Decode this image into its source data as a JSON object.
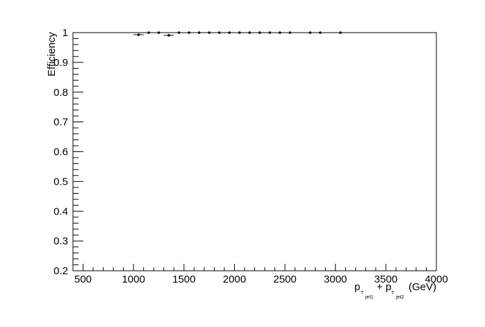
{
  "chart_data": {
    "type": "scatter",
    "xlabel": {
      "p1": "p",
      "t1": "T",
      "j1": "jet1",
      "plus": "+ p",
      "t2": "T",
      "j2": "jet2",
      "unit": "(GeV)"
    },
    "ylabel": "Efficiency",
    "xlim": [
      400,
      4000
    ],
    "ylim": [
      0.2,
      1.0
    ],
    "x_ticks": [
      500,
      1000,
      1500,
      2000,
      2500,
      3000,
      3500,
      4000
    ],
    "y_ticks": [
      0.2,
      0.3,
      0.4,
      0.5,
      0.6,
      0.7,
      0.8,
      0.9,
      1.0
    ],
    "x_tick_labels": [
      "500",
      "1000",
      "1500",
      "2000",
      "2500",
      "3000",
      "3500",
      "4000"
    ],
    "y_tick_labels": [
      "0.2",
      "0.3",
      "0.4",
      "0.5",
      "0.6",
      "0.7",
      "0.8",
      "0.9",
      "1"
    ],
    "grid": false,
    "points": [
      {
        "x": 1050,
        "y": 0.993,
        "xerr": 50
      },
      {
        "x": 1150,
        "y": 1.0,
        "xerr": 50
      },
      {
        "x": 1250,
        "y": 1.0,
        "xerr": 50
      },
      {
        "x": 1350,
        "y": 0.991,
        "xerr": 50
      },
      {
        "x": 1450,
        "y": 1.0,
        "xerr": 50
      },
      {
        "x": 1550,
        "y": 1.0,
        "xerr": 50
      },
      {
        "x": 1650,
        "y": 1.0,
        "xerr": 50
      },
      {
        "x": 1750,
        "y": 1.0,
        "xerr": 50
      },
      {
        "x": 1850,
        "y": 1.0,
        "xerr": 50
      },
      {
        "x": 1950,
        "y": 1.0,
        "xerr": 50
      },
      {
        "x": 2050,
        "y": 1.0,
        "xerr": 50
      },
      {
        "x": 2150,
        "y": 1.0,
        "xerr": 50
      },
      {
        "x": 2250,
        "y": 1.0,
        "xerr": 50
      },
      {
        "x": 2350,
        "y": 1.0,
        "xerr": 50
      },
      {
        "x": 2450,
        "y": 1.0,
        "xerr": 50
      },
      {
        "x": 2550,
        "y": 1.0,
        "xerr": 50
      },
      {
        "x": 2750,
        "y": 1.0,
        "xerr": 50
      },
      {
        "x": 2850,
        "y": 1.0,
        "xerr": 50
      },
      {
        "x": 3050,
        "y": 1.0,
        "xerr": 50
      }
    ]
  }
}
